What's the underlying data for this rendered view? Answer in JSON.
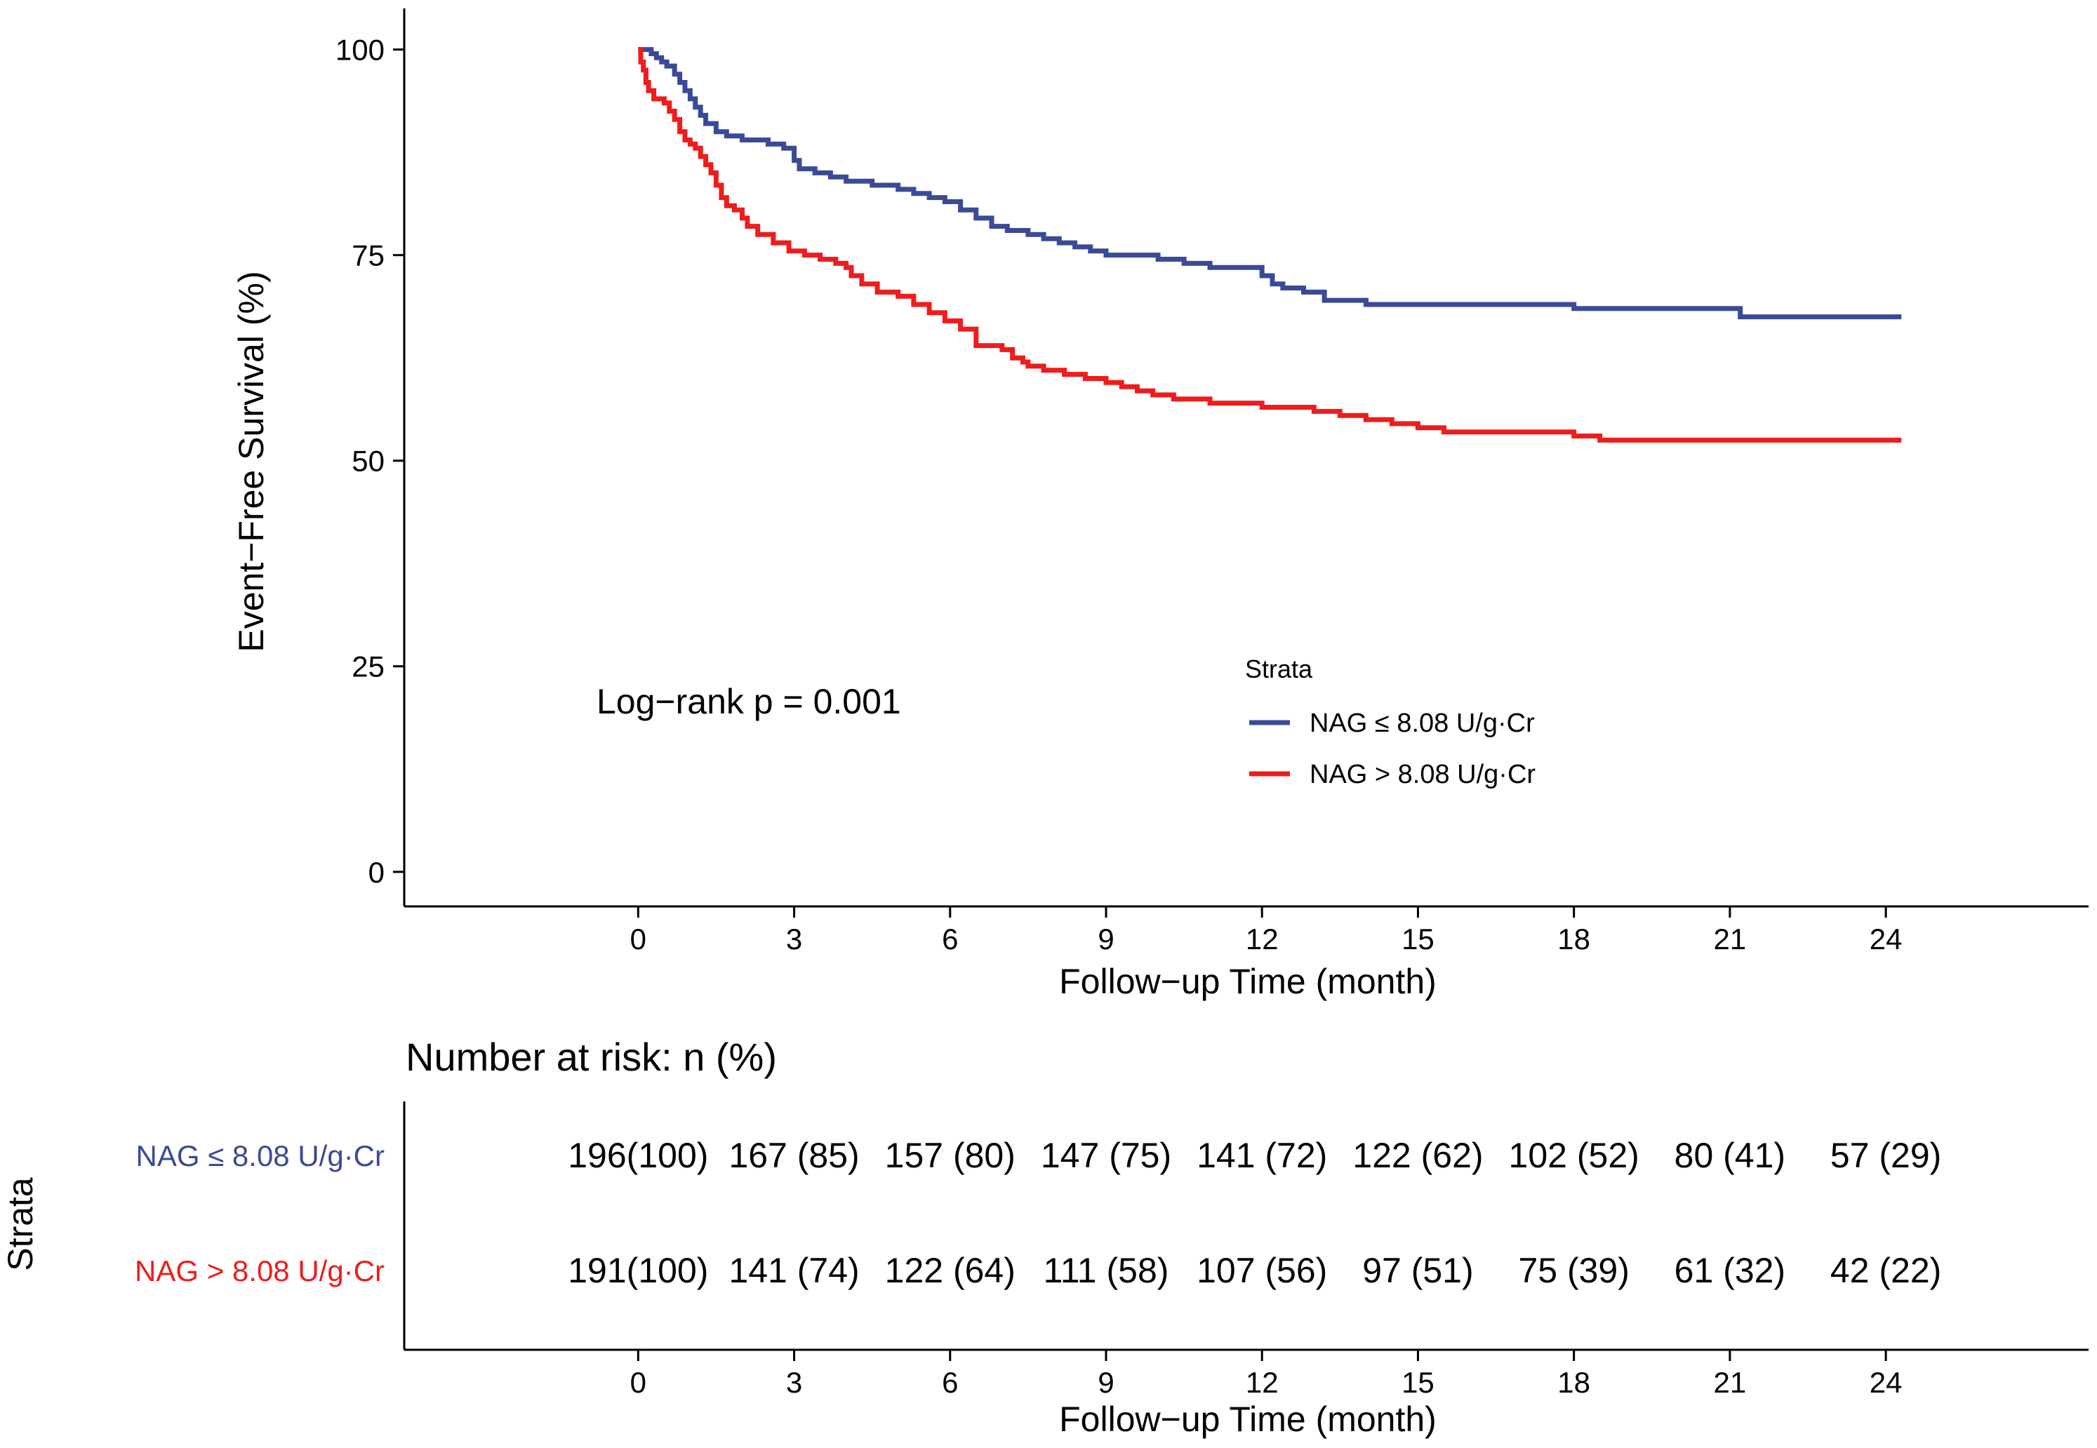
{
  "chart_data": [
    {
      "type": "line",
      "subtype": "kaplan-meier step curve",
      "ylabel": "Event−Free Survival (%)",
      "xlabel": "Follow−up Time (month)",
      "xlim": [
        -4.5,
        27.9
      ],
      "ylim": [
        -4.2,
        105
      ],
      "x_ticks": [
        0,
        3,
        6,
        9,
        12,
        15,
        18,
        21,
        24
      ],
      "x_tick_labels": [
        "0",
        "3",
        "6",
        "9",
        "12",
        "15",
        "18",
        "21",
        "24"
      ],
      "y_ticks": [
        0,
        25,
        50,
        75,
        100
      ],
      "y_tick_labels": [
        "0",
        "25",
        "50",
        "75",
        "100"
      ],
      "annotation": "Log−rank p = 0.001",
      "legend": {
        "title": "Strata",
        "placement": "inside-bottom-right",
        "entries": [
          "NAG ≤ 8.08 U/g·Cr",
          "NAG > 8.08 U/g·Cr"
        ]
      },
      "grid": false,
      "series": [
        {
          "name": "NAG ≤ 8.08 U/g·Cr",
          "color": "#3B4A96",
          "points": [
            [
              0,
              100
            ],
            [
              0.25,
              99.5
            ],
            [
              0.35,
              99.0
            ],
            [
              0.45,
              98.5
            ],
            [
              0.55,
              98.0
            ],
            [
              0.7,
              97.0
            ],
            [
              0.8,
              96.0
            ],
            [
              0.9,
              95.0
            ],
            [
              1.0,
              94.0
            ],
            [
              1.1,
              93.0
            ],
            [
              1.2,
              92.0
            ],
            [
              1.3,
              91.0
            ],
            [
              1.5,
              90.0
            ],
            [
              1.7,
              89.5
            ],
            [
              2.0,
              89.0
            ],
            [
              2.5,
              88.5
            ],
            [
              2.8,
              88.0
            ],
            [
              3.0,
              86.5
            ],
            [
              3.1,
              85.5
            ],
            [
              3.4,
              85.0
            ],
            [
              3.7,
              84.5
            ],
            [
              4.0,
              84.0
            ],
            [
              4.5,
              83.5
            ],
            [
              5.0,
              83.0
            ],
            [
              5.3,
              82.5
            ],
            [
              5.6,
              82.0
            ],
            [
              5.9,
              81.5
            ],
            [
              6.2,
              80.5
            ],
            [
              6.5,
              79.5
            ],
            [
              6.8,
              78.5
            ],
            [
              7.1,
              78.0
            ],
            [
              7.5,
              77.5
            ],
            [
              7.8,
              77.0
            ],
            [
              8.1,
              76.5
            ],
            [
              8.4,
              76.0
            ],
            [
              8.7,
              75.5
            ],
            [
              9.0,
              75.0
            ],
            [
              10.0,
              74.5
            ],
            [
              10.5,
              74.0
            ],
            [
              11.0,
              73.5
            ],
            [
              12.0,
              72.5
            ],
            [
              12.2,
              71.5
            ],
            [
              12.4,
              71.0
            ],
            [
              12.8,
              70.5
            ],
            [
              13.2,
              69.5
            ],
            [
              14.0,
              69.0
            ],
            [
              18.0,
              68.5
            ],
            [
              21.2,
              67.5
            ],
            [
              24.3,
              67.5
            ]
          ]
        },
        {
          "name": "NAG > 8.08 U/g·Cr",
          "color": "#EE1C1C",
          "points": [
            [
              0,
              100
            ],
            [
              0.05,
              98.5
            ],
            [
              0.1,
              97.5
            ],
            [
              0.15,
              96.0
            ],
            [
              0.2,
              95.0
            ],
            [
              0.3,
              94.0
            ],
            [
              0.5,
              93.5
            ],
            [
              0.6,
              92.5
            ],
            [
              0.7,
              91.5
            ],
            [
              0.8,
              90.0
            ],
            [
              0.9,
              89.0
            ],
            [
              1.0,
              88.5
            ],
            [
              1.1,
              88.0
            ],
            [
              1.2,
              87.0
            ],
            [
              1.3,
              86.0
            ],
            [
              1.4,
              85.0
            ],
            [
              1.5,
              83.5
            ],
            [
              1.6,
              82.0
            ],
            [
              1.7,
              81.0
            ],
            [
              1.85,
              80.5
            ],
            [
              2.0,
              79.5
            ],
            [
              2.1,
              78.5
            ],
            [
              2.3,
              77.5
            ],
            [
              2.6,
              76.5
            ],
            [
              2.9,
              75.5
            ],
            [
              3.2,
              75.0
            ],
            [
              3.5,
              74.5
            ],
            [
              3.8,
              74.0
            ],
            [
              4.0,
              73.5
            ],
            [
              4.1,
              72.5
            ],
            [
              4.3,
              71.5
            ],
            [
              4.6,
              70.5
            ],
            [
              5.0,
              70.0
            ],
            [
              5.3,
              69.0
            ],
            [
              5.6,
              68.0
            ],
            [
              5.9,
              67.0
            ],
            [
              6.2,
              66.0
            ],
            [
              6.5,
              64.0
            ],
            [
              7.0,
              63.5
            ],
            [
              7.2,
              62.5
            ],
            [
              7.4,
              62.0
            ],
            [
              7.5,
              61.5
            ],
            [
              7.8,
              61.0
            ],
            [
              8.2,
              60.5
            ],
            [
              8.6,
              60.0
            ],
            [
              9.0,
              59.5
            ],
            [
              9.3,
              59.0
            ],
            [
              9.6,
              58.5
            ],
            [
              9.9,
              58.0
            ],
            [
              10.3,
              57.5
            ],
            [
              11.0,
              57.0
            ],
            [
              12.0,
              56.5
            ],
            [
              13.0,
              56.0
            ],
            [
              13.5,
              55.5
            ],
            [
              14.0,
              55.0
            ],
            [
              14.5,
              54.5
            ],
            [
              15.0,
              54.0
            ],
            [
              15.5,
              53.5
            ],
            [
              16.0,
              53.5
            ],
            [
              18.0,
              53.0
            ],
            [
              18.5,
              52.5
            ],
            [
              20.0,
              52.5
            ],
            [
              24.3,
              52.5
            ]
          ]
        }
      ]
    },
    {
      "type": "table",
      "title": "Number at risk: n (%)",
      "ylabel": "Strata",
      "xlabel": "Follow−up Time (month)",
      "x_tick_labels": [
        "0",
        "3",
        "6",
        "9",
        "12",
        "15",
        "18",
        "21",
        "24"
      ],
      "rows": [
        {
          "label": "NAG ≤ 8.08 U/g·Cr",
          "color": "#3B4A96",
          "cells": [
            "196(100)",
            "167 (85)",
            "157 (80)",
            "147 (75)",
            "141 (72)",
            "122 (62)",
            "102 (52)",
            "80 (41)",
            "57 (29)"
          ]
        },
        {
          "label": "NAG > 8.08 U/g·Cr",
          "color": "#EE1C1C",
          "cells": [
            "191(100)",
            "141 (74)",
            "122 (64)",
            "111 (58)",
            "107 (56)",
            "97 (51)",
            "75 (39)",
            "61 (32)",
            "42 (22)"
          ]
        }
      ]
    }
  ]
}
